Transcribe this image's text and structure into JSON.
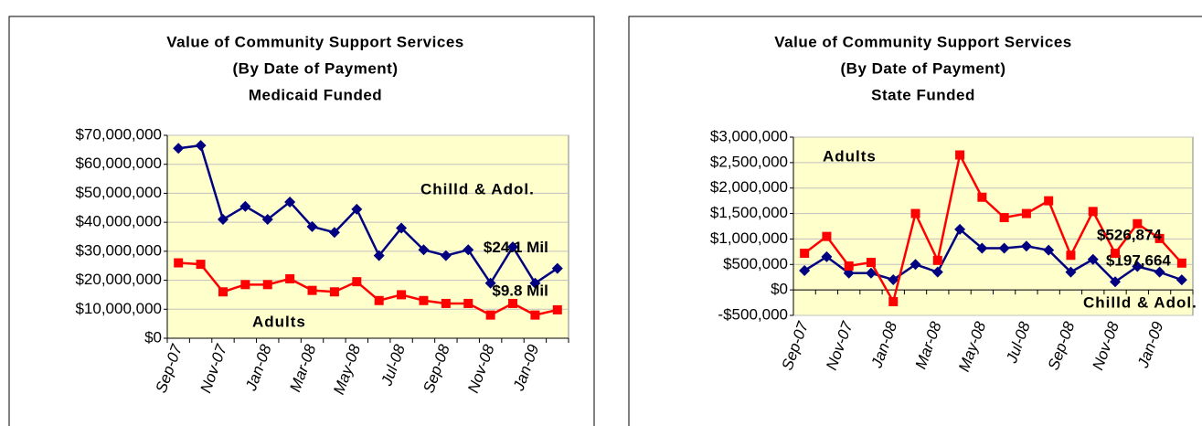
{
  "chart_data": [
    {
      "type": "line",
      "title": [
        "Value of Community Support Services",
        "(By Date of Payment)",
        "Medicaid Funded"
      ],
      "categories": [
        "Sep-07",
        null,
        "Nov-07",
        null,
        "Jan-08",
        null,
        "Mar-08",
        null,
        "May-08",
        null,
        "Jul-08",
        null,
        "Sep-08",
        null,
        "Nov-08",
        null,
        "Jan-09",
        null
      ],
      "series": [
        {
          "name": "Chilld & Adol.",
          "color": "#000080",
          "values": [
            65500000,
            66500000,
            41000000,
            45500000,
            41000000,
            47000000,
            38500000,
            36500000,
            44500000,
            28500000,
            38000000,
            30500000,
            28500000,
            30500000,
            19000000,
            31500000,
            19000000,
            24100000
          ],
          "value_labels": [
            null,
            null,
            null,
            null,
            null,
            null,
            null,
            null,
            null,
            null,
            null,
            null,
            null,
            null,
            null,
            null,
            null,
            "$24.1 Mil"
          ]
        },
        {
          "name": "Adults",
          "color": "#ff0000",
          "values": [
            26000000,
            25500000,
            16000000,
            18500000,
            18500000,
            20500000,
            16500000,
            16000000,
            19500000,
            13000000,
            15000000,
            13000000,
            12000000,
            12000000,
            8000000,
            12000000,
            8000000,
            9800000
          ],
          "value_labels": [
            null,
            null,
            null,
            null,
            null,
            null,
            null,
            null,
            null,
            null,
            null,
            null,
            null,
            null,
            null,
            null,
            null,
            "$9.8 Mil"
          ]
        }
      ],
      "ylim": [
        0,
        70000000
      ],
      "yticks": [
        {
          "value": 0,
          "label": "$0"
        },
        {
          "value": 10000000,
          "label": "$10,000,000"
        },
        {
          "value": 20000000,
          "label": "$20,000,000"
        },
        {
          "value": 30000000,
          "label": "$30,000,000"
        },
        {
          "value": 40000000,
          "label": "$40,000,000"
        },
        {
          "value": 50000000,
          "label": "$50,000,000"
        },
        {
          "value": 60000000,
          "label": "$60,000,000"
        },
        {
          "value": 70000000,
          "label": "$70,000,000"
        }
      ],
      "grid": true
    },
    {
      "type": "line",
      "title": [
        "Value of Community Support Services",
        "(By Date of Payment)",
        "State Funded"
      ],
      "categories": [
        "Sep-07",
        null,
        "Nov-07",
        null,
        "Jan-08",
        null,
        "Mar-08",
        null,
        "May-08",
        null,
        "Jul-08",
        null,
        "Sep-08",
        null,
        "Nov-08",
        null,
        "Jan-09",
        null
      ],
      "series": [
        {
          "name": "Chilld & Adol.",
          "color": "#000080",
          "values": [
            380000,
            650000,
            330000,
            330000,
            200000,
            500000,
            350000,
            1190000,
            820000,
            820000,
            860000,
            780000,
            350000,
            600000,
            160000,
            460000,
            350000,
            197664
          ],
          "value_labels": [
            null,
            null,
            null,
            null,
            null,
            null,
            null,
            null,
            null,
            null,
            null,
            null,
            null,
            null,
            null,
            null,
            null,
            "$197,664"
          ]
        },
        {
          "name": "Adults",
          "color": "#ff0000",
          "values": [
            720000,
            1050000,
            470000,
            540000,
            -230000,
            1500000,
            580000,
            2650000,
            1820000,
            1420000,
            1500000,
            1750000,
            680000,
            1540000,
            720000,
            1300000,
            1010000,
            526874
          ],
          "value_labels": [
            null,
            null,
            null,
            null,
            null,
            null,
            null,
            null,
            null,
            null,
            null,
            null,
            null,
            null,
            null,
            null,
            null,
            "$526,874"
          ]
        }
      ],
      "ylim": [
        -500000,
        3000000
      ],
      "yticks": [
        {
          "value": -500000,
          "label": "-$500,000"
        },
        {
          "value": 0,
          "label": "$0"
        },
        {
          "value": 500000,
          "label": "$500,000"
        },
        {
          "value": 1000000,
          "label": "$1,000,000"
        },
        {
          "value": 1500000,
          "label": "$1,500,000"
        },
        {
          "value": 2000000,
          "label": "$2,000,000"
        },
        {
          "value": 2500000,
          "label": "$2,500,000"
        },
        {
          "value": 3000000,
          "label": "$3,000,000"
        }
      ],
      "grid": true
    }
  ]
}
